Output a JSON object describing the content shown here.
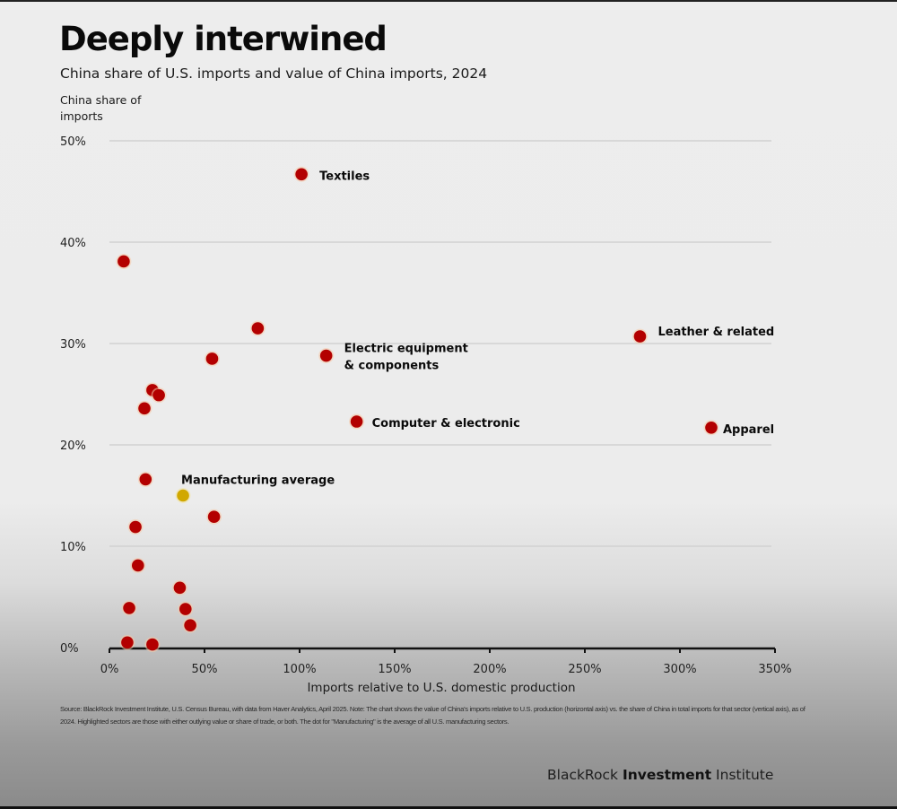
{
  "header": {
    "title": "Deeply interwined",
    "subtitle": "China share of U.S. imports and value of China imports, 2024",
    "y_axis_label_line1": "China share of",
    "y_axis_label_line2": "imports"
  },
  "chart_data": {
    "type": "scatter",
    "title": "Deeply interwined",
    "subtitle": "China share of U.S. imports and value of China imports, 2024",
    "xlabel": "Imports relative to U.S. domestic production",
    "ylabel": "China share of imports",
    "xlim": [
      0,
      350
    ],
    "ylim": [
      0,
      50
    ],
    "x_unit": "%",
    "y_unit": "%",
    "x_ticks": [
      0,
      50,
      100,
      150,
      200,
      250,
      300,
      350
    ],
    "x_tick_labels": [
      "0%",
      "50%",
      "100%",
      "150%",
      "200%",
      "250%",
      "300%",
      "350%"
    ],
    "y_ticks": [
      0,
      10,
      20,
      30,
      40,
      50
    ],
    "y_tick_labels": [
      "0%",
      "10%",
      "20%",
      "30%",
      "40%",
      "50%"
    ],
    "grid": "horizontal",
    "colors": {
      "sector": "#b30000",
      "average": "#d1a800"
    },
    "points": [
      {
        "label": "Textiles",
        "x": 101,
        "y": 46.7,
        "highlight": true,
        "kind": "sector",
        "label_lines": [
          "Textiles"
        ]
      },
      {
        "label": "",
        "x": 7.5,
        "y": 38.1,
        "kind": "sector"
      },
      {
        "label": "",
        "x": 78,
        "y": 31.5,
        "kind": "sector"
      },
      {
        "label": "Leather & related",
        "x": 279,
        "y": 30.7,
        "highlight": true,
        "kind": "sector",
        "label_lines": [
          "Leather & related"
        ]
      },
      {
        "label": "",
        "x": 54,
        "y": 28.5,
        "kind": "sector"
      },
      {
        "label": "Electric equipment & components",
        "x": 114,
        "y": 28.8,
        "highlight": true,
        "kind": "sector",
        "label_lines": [
          "Electric equipment",
          "& components"
        ]
      },
      {
        "label": "",
        "x": 22.6,
        "y": 25.4,
        "kind": "sector"
      },
      {
        "label": "",
        "x": 26,
        "y": 24.9,
        "kind": "sector"
      },
      {
        "label": "",
        "x": 18.4,
        "y": 23.6,
        "kind": "sector"
      },
      {
        "label": "Computer & electronic",
        "x": 130,
        "y": 22.3,
        "highlight": true,
        "kind": "sector",
        "label_lines": [
          "Computer & electronic"
        ]
      },
      {
        "label": "Apparel",
        "x": 316.5,
        "y": 21.7,
        "highlight": true,
        "kind": "sector",
        "label_lines": [
          "Apparel"
        ]
      },
      {
        "label": "",
        "x": 19,
        "y": 16.6,
        "kind": "sector"
      },
      {
        "label": "Manufacturing average",
        "x": 38.7,
        "y": 15.0,
        "highlight": true,
        "kind": "average",
        "label_lines": [
          "Manufacturing average"
        ]
      },
      {
        "label": "",
        "x": 55,
        "y": 12.9,
        "kind": "sector"
      },
      {
        "label": "",
        "x": 13.7,
        "y": 11.9,
        "kind": "sector"
      },
      {
        "label": "",
        "x": 15,
        "y": 8.1,
        "kind": "sector"
      },
      {
        "label": "",
        "x": 37,
        "y": 5.9,
        "kind": "sector"
      },
      {
        "label": "",
        "x": 10.4,
        "y": 3.9,
        "kind": "sector"
      },
      {
        "label": "",
        "x": 40,
        "y": 3.8,
        "kind": "sector"
      },
      {
        "label": "",
        "x": 42.5,
        "y": 2.2,
        "kind": "sector"
      },
      {
        "label": "",
        "x": 9.4,
        "y": 0.5,
        "kind": "sector"
      },
      {
        "label": "",
        "x": 22.6,
        "y": 0.3,
        "kind": "sector"
      }
    ]
  },
  "footer": {
    "source": "Source: BlackRock Investment Institute, U.S. Census Bureau, with data from Haver Analytics, April 2025. Note: The chart shows the value of China's imports relative to U.S. production (horizontal axis) vs. the share of China in total imports for that sector (vertical axis), as of 2024. Highlighted sectors are those with either outlying value or share of trade, or both. The dot for \"Manufacturing\" is the average of all U.S. manufacturing sectors.",
    "brand_part1": "BlackRock",
    "brand_part2": "Investment",
    "brand_part3": "Institute"
  }
}
